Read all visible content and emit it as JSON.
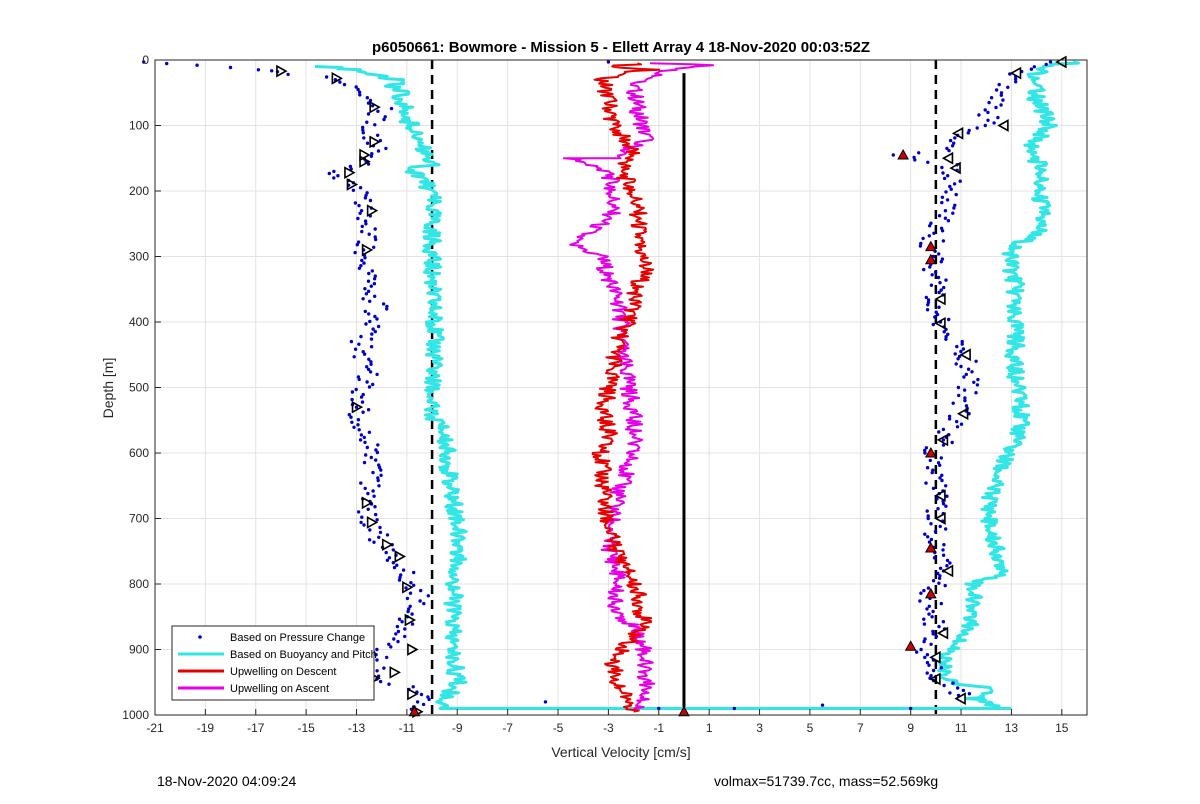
{
  "chart_data": {
    "type": "scatter",
    "title": "p6050661: Bowmore - Mission 5 - Ellett Array 4 18-Nov-2020 00:03:52Z",
    "xlabel": "Vertical Velocity [cm/s]",
    "ylabel": "Depth [m]",
    "xlim": [
      -21,
      16
    ],
    "ylim": [
      0,
      1000
    ],
    "y_reversed": true,
    "xticks": [
      -21,
      -19,
      -17,
      -15,
      -13,
      -11,
      -9,
      -7,
      -5,
      -3,
      -1,
      1,
      3,
      5,
      7,
      9,
      11,
      13,
      15
    ],
    "yticks": [
      0,
      100,
      200,
      300,
      400,
      500,
      600,
      700,
      800,
      900,
      1000
    ],
    "grid": true,
    "legend_position": "bottom-left",
    "reference_lines": [
      {
        "x": -10,
        "style": "dashed",
        "color": "#000000"
      },
      {
        "x": 10,
        "style": "dashed",
        "color": "#000000"
      },
      {
        "x": 0,
        "style": "solid",
        "color": "#000000",
        "y_range": [
          20,
          1000
        ]
      }
    ],
    "series": [
      {
        "name": "Based on Pressure Change",
        "color": "#0000cc",
        "marker": "dot",
        "points_left": [
          [
            -21,
            3
          ],
          [
            -19.5,
            8
          ],
          [
            -17,
            15
          ],
          [
            -16,
            18
          ],
          [
            -13.8,
            30
          ],
          [
            -12.8,
            45
          ],
          [
            -12,
            70
          ],
          [
            -12.2,
            95
          ],
          [
            -12.5,
            115
          ],
          [
            -12,
            135
          ],
          [
            -12.5,
            155
          ],
          [
            -13.5,
            170
          ],
          [
            -14,
            180
          ],
          [
            -13,
            195
          ],
          [
            -12.5,
            230
          ],
          [
            -12.7,
            290
          ],
          [
            -12.5,
            330
          ],
          [
            -12.2,
            380
          ],
          [
            -12.8,
            430
          ],
          [
            -12.5,
            480
          ],
          [
            -13,
            530
          ],
          [
            -12.6,
            580
          ],
          [
            -12.4,
            630
          ],
          [
            -12.6,
            670
          ],
          [
            -12.4,
            710
          ],
          [
            -12,
            740
          ],
          [
            -11.5,
            760
          ],
          [
            -11,
            790
          ],
          [
            -10.5,
            810
          ],
          [
            -11,
            850
          ],
          [
            -11.5,
            880
          ],
          [
            -12.3,
            920
          ],
          [
            -12.2,
            945
          ],
          [
            -10.5,
            965
          ],
          [
            -10.5,
            995
          ]
        ],
        "points_right": [
          [
            15,
            3
          ],
          [
            13,
            25
          ],
          [
            12.5,
            50
          ],
          [
            12.2,
            80
          ],
          [
            12,
            100
          ],
          [
            11,
            115
          ],
          [
            10.8,
            135
          ],
          [
            8.7,
            145
          ],
          [
            10.5,
            160
          ],
          [
            10.8,
            185
          ],
          [
            10.5,
            230
          ],
          [
            9.8,
            280
          ],
          [
            9.8,
            300
          ],
          [
            10,
            340
          ],
          [
            10,
            370
          ],
          [
            10.2,
            400
          ],
          [
            10.8,
            430
          ],
          [
            11.2,
            460
          ],
          [
            11.3,
            500
          ],
          [
            11,
            540
          ],
          [
            10.3,
            580
          ],
          [
            9.8,
            600
          ],
          [
            9.8,
            630
          ],
          [
            10.2,
            670
          ],
          [
            10,
            700
          ],
          [
            9.9,
            740
          ],
          [
            10.5,
            780
          ],
          [
            9.8,
            810
          ],
          [
            9.8,
            850
          ],
          [
            10,
            880
          ],
          [
            9,
            900
          ],
          [
            9.9,
            920
          ],
          [
            9.8,
            940
          ],
          [
            11,
            970
          ],
          [
            11.5,
            965
          ]
        ],
        "near_zero": [
          [
            -3,
            3
          ],
          [
            -5.5,
            980
          ],
          [
            -1,
            990
          ],
          [
            2,
            990
          ],
          [
            5.5,
            985
          ],
          [
            9,
            990
          ]
        ]
      },
      {
        "name": "Based on Buoyancy and Pitch",
        "color": "#33e6e6",
        "marker": "line",
        "points_left": [
          [
            -14.3,
            10
          ],
          [
            -13,
            15
          ],
          [
            -12,
            25
          ],
          [
            -11.3,
            30
          ],
          [
            -11.5,
            40
          ],
          [
            -11.2,
            50
          ],
          [
            -11.5,
            60
          ],
          [
            -11,
            70
          ],
          [
            -11.2,
            85
          ],
          [
            -10.8,
            100
          ],
          [
            -10.5,
            125
          ],
          [
            -10.3,
            140
          ],
          [
            -10,
            160
          ],
          [
            -11,
            165
          ],
          [
            -10.5,
            175
          ],
          [
            -10.2,
            190
          ],
          [
            -10,
            210
          ],
          [
            -10,
            260
          ],
          [
            -10,
            300
          ],
          [
            -10,
            350
          ],
          [
            -9.9,
            400
          ],
          [
            -9.9,
            450
          ],
          [
            -10,
            500
          ],
          [
            -10.1,
            540
          ],
          [
            -9.6,
            560
          ],
          [
            -9.4,
            600
          ],
          [
            -9.3,
            650
          ],
          [
            -9,
            700
          ],
          [
            -8.9,
            750
          ],
          [
            -9.1,
            800
          ],
          [
            -9.2,
            850
          ],
          [
            -9.2,
            900
          ],
          [
            -9,
            950
          ],
          [
            -9.5,
            980
          ],
          [
            -9.4,
            990
          ],
          [
            0,
            990
          ],
          [
            13,
            990
          ]
        ],
        "points_right": [
          [
            15.8,
            3
          ],
          [
            14.5,
            8
          ],
          [
            14,
            20
          ],
          [
            14,
            40
          ],
          [
            14,
            60
          ],
          [
            14.3,
            80
          ],
          [
            14.5,
            100
          ],
          [
            13.8,
            130
          ],
          [
            13.8,
            145
          ],
          [
            14.3,
            170
          ],
          [
            14,
            200
          ],
          [
            14.3,
            230
          ],
          [
            14.1,
            260
          ],
          [
            13,
            290
          ],
          [
            13,
            320
          ],
          [
            13.2,
            350
          ],
          [
            13,
            380
          ],
          [
            13.2,
            420
          ],
          [
            13.1,
            460
          ],
          [
            13.2,
            500
          ],
          [
            13.4,
            530
          ],
          [
            13.3,
            570
          ],
          [
            12.6,
            620
          ],
          [
            12.2,
            660
          ],
          [
            12.1,
            710
          ],
          [
            12.4,
            750
          ],
          [
            12.8,
            780
          ],
          [
            11.5,
            800
          ],
          [
            11.5,
            850
          ],
          [
            11.2,
            880
          ],
          [
            10.5,
            900
          ],
          [
            10.3,
            920
          ],
          [
            10.5,
            950
          ],
          [
            12.5,
            960
          ],
          [
            11.5,
            975
          ],
          [
            12.5,
            990
          ]
        ]
      },
      {
        "name": "Upwelling on Descent",
        "color": "#e60000",
        "marker": "line",
        "points": [
          [
            -1.5,
            5
          ],
          [
            -3,
            10
          ],
          [
            -1.2,
            15
          ],
          [
            -2.5,
            20
          ],
          [
            -3.2,
            30
          ],
          [
            -3,
            60
          ],
          [
            -2.8,
            100
          ],
          [
            -2,
            140
          ],
          [
            -2.5,
            170
          ],
          [
            -2,
            200
          ],
          [
            -1.8,
            240
          ],
          [
            -1.8,
            280
          ],
          [
            -1.5,
            320
          ],
          [
            -1.9,
            350
          ],
          [
            -2,
            380
          ],
          [
            -2.5,
            420
          ],
          [
            -2.8,
            460
          ],
          [
            -3,
            500
          ],
          [
            -3.2,
            540
          ],
          [
            -3,
            570
          ],
          [
            -3.3,
            600
          ],
          [
            -3.2,
            650
          ],
          [
            -3.1,
            700
          ],
          [
            -2.8,
            740
          ],
          [
            -2.2,
            780
          ],
          [
            -1.8,
            820
          ],
          [
            -1.6,
            860
          ],
          [
            -2.4,
            900
          ],
          [
            -2.8,
            920
          ],
          [
            -2.6,
            950
          ],
          [
            -2.3,
            980
          ],
          [
            -2,
            995
          ]
        ]
      },
      {
        "name": "Upwelling on Ascent",
        "color": "#e600e6",
        "marker": "line",
        "points": [
          [
            -1,
            5
          ],
          [
            1,
            8
          ],
          [
            -0.5,
            15
          ],
          [
            -2,
            40
          ],
          [
            -1.8,
            80
          ],
          [
            -1.5,
            120
          ],
          [
            -2.8,
            150
          ],
          [
            -4.5,
            150
          ],
          [
            -3,
            170
          ],
          [
            -2.8,
            200
          ],
          [
            -2.9,
            240
          ],
          [
            -4.5,
            280
          ],
          [
            -3.3,
            300
          ],
          [
            -3,
            330
          ],
          [
            -2.5,
            380
          ],
          [
            -2.5,
            420
          ],
          [
            -2.4,
            460
          ],
          [
            -2.2,
            500
          ],
          [
            -2,
            540
          ],
          [
            -2,
            580
          ],
          [
            -2.2,
            620
          ],
          [
            -2.6,
            660
          ],
          [
            -2.8,
            700
          ],
          [
            -3,
            740
          ],
          [
            -2.6,
            790
          ],
          [
            -2.8,
            830
          ],
          [
            -2,
            870
          ],
          [
            -1.6,
            900
          ],
          [
            -1.5,
            940
          ],
          [
            -1.4,
            970
          ],
          [
            -2,
            990
          ]
        ]
      }
    ],
    "markers": [
      {
        "shape": "triangle-right",
        "color": "#000000",
        "points": [
          [
            -16,
            17
          ],
          [
            -13.8,
            28
          ],
          [
            -12.3,
            72
          ],
          [
            -12.3,
            125
          ],
          [
            -12.7,
            145
          ],
          [
            -12.7,
            155
          ],
          [
            -13.3,
            172
          ],
          [
            -13.2,
            190
          ],
          [
            -12.4,
            230
          ],
          [
            -12.6,
            290
          ],
          [
            -13,
            530
          ],
          [
            -12.6,
            676
          ],
          [
            -12.4,
            706
          ],
          [
            -11.8,
            740
          ],
          [
            -11.3,
            758
          ],
          [
            -11,
            805
          ],
          [
            -10.9,
            855
          ],
          [
            -10.8,
            900
          ],
          [
            -12.3,
            944
          ],
          [
            -11.5,
            935
          ],
          [
            -10.8,
            968
          ],
          [
            -10.6,
            995
          ]
        ]
      },
      {
        "shape": "triangle-left",
        "color": "#000000",
        "points": [
          [
            15,
            3
          ],
          [
            13.2,
            20
          ],
          [
            12.7,
            100
          ],
          [
            10.9,
            112
          ],
          [
            10.5,
            150
          ],
          [
            10.8,
            165
          ],
          [
            10.2,
            365
          ],
          [
            10.2,
            402
          ],
          [
            11.2,
            450
          ],
          [
            11.1,
            540
          ],
          [
            10.3,
            580
          ],
          [
            10.2,
            665
          ],
          [
            10.2,
            700
          ],
          [
            10.5,
            780
          ],
          [
            10.3,
            875
          ],
          [
            10,
            912
          ],
          [
            10,
            945
          ],
          [
            11,
            975
          ]
        ]
      },
      {
        "shape": "triangle-up",
        "color": "#cc0000",
        "points": [
          [
            8.7,
            145
          ],
          [
            9.8,
            285
          ],
          [
            9.8,
            305
          ],
          [
            9.8,
            600
          ],
          [
            9.8,
            745
          ],
          [
            9.8,
            815
          ],
          [
            9,
            895
          ],
          [
            0,
            995
          ],
          [
            -10.7,
            995
          ]
        ]
      }
    ]
  },
  "footer": {
    "left": "18-Nov-2020 04:09:24",
    "right": "volmax=51739.7cc, mass=52.569kg"
  }
}
